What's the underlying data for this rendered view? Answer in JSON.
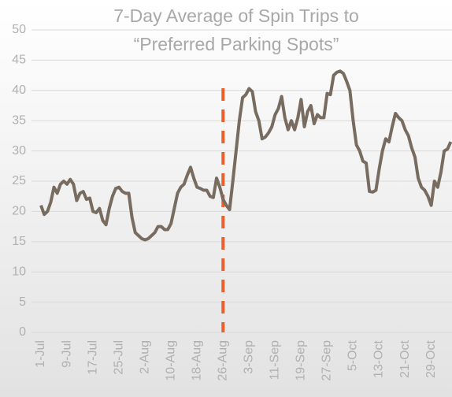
{
  "chart_data": {
    "type": "line",
    "title": [
      "7-Day Average of Spin Trips to",
      "“Preferred Parking Spots”"
    ],
    "categories": [
      "1-Jul",
      null,
      null,
      null,
      null,
      null,
      null,
      null,
      "9-Jul",
      null,
      null,
      null,
      null,
      null,
      null,
      null,
      "17-Jul",
      null,
      null,
      null,
      null,
      null,
      null,
      null,
      "25-Jul",
      null,
      null,
      null,
      null,
      null,
      null,
      null,
      "2-Aug",
      null,
      null,
      null,
      null,
      null,
      null,
      null,
      "10-Aug",
      null,
      null,
      null,
      null,
      null,
      null,
      null,
      "18-Aug",
      null,
      null,
      null,
      null,
      null,
      null,
      null,
      "26-Aug",
      null,
      null,
      null,
      null,
      null,
      null,
      null,
      "3-Sep",
      null,
      null,
      null,
      null,
      null,
      null,
      null,
      "11-Sep",
      null,
      null,
      null,
      null,
      null,
      null,
      null,
      "19-Sep",
      null,
      null,
      null,
      null,
      null,
      null,
      null,
      "27-Sep",
      null,
      null,
      null,
      null,
      null,
      null,
      null,
      "5-Oct",
      null,
      null,
      null,
      null,
      null,
      null,
      null,
      "13-Oct",
      null,
      null,
      null,
      null,
      null,
      null,
      null,
      "21-Oct",
      null,
      null,
      null,
      null,
      null,
      null,
      null,
      "29-Oct",
      null,
      null,
      null,
      null,
      null,
      null
    ],
    "values": [
      21,
      19.5,
      20,
      21.5,
      24,
      23,
      24.5,
      25,
      24.5,
      25.3,
      24.5,
      21.8,
      23,
      23.3,
      22,
      22.2,
      20,
      19.8,
      20.5,
      18.5,
      17.8,
      20.5,
      22.5,
      23.8,
      24,
      23.3,
      23,
      23,
      19,
      16.5,
      16,
      15.5,
      15.3,
      15.5,
      16,
      16.5,
      17.5,
      17.5,
      17,
      17,
      18,
      20.5,
      23,
      24,
      24.5,
      26,
      27.3,
      25.5,
      24,
      23.8,
      23.5,
      23.5,
      22.5,
      22.3,
      25.5,
      24,
      22,
      21,
      20.3,
      25,
      30,
      35,
      38.8,
      39.3,
      40.3,
      39.8,
      36.5,
      35,
      32,
      32.3,
      33,
      34,
      36,
      37,
      39,
      35.5,
      33.5,
      35,
      33.5,
      35.5,
      38.5,
      34,
      36.5,
      37.5,
      34.5,
      36,
      35.5,
      35.5,
      39.5,
      39.3,
      42.5,
      43,
      43.2,
      42.8,
      41.5,
      40,
      35,
      31,
      30,
      28.3,
      28,
      23.3,
      23.2,
      23.5,
      27,
      30,
      32,
      31.5,
      34,
      36.2,
      35.5,
      35,
      33.5,
      32.5,
      30.5,
      29,
      25.5,
      24,
      23.5,
      22.5,
      21,
      25,
      24,
      26.5,
      30,
      30.3,
      31.5
    ],
    "color": "#786b5f",
    "ylim": [
      0,
      50
    ],
    "yticks": [
      0,
      5,
      10,
      15,
      20,
      25,
      30,
      35,
      40,
      45,
      50
    ],
    "grid": true,
    "reference_line": {
      "category": "26-Aug",
      "color": "#e8602c",
      "dashed": true
    }
  }
}
